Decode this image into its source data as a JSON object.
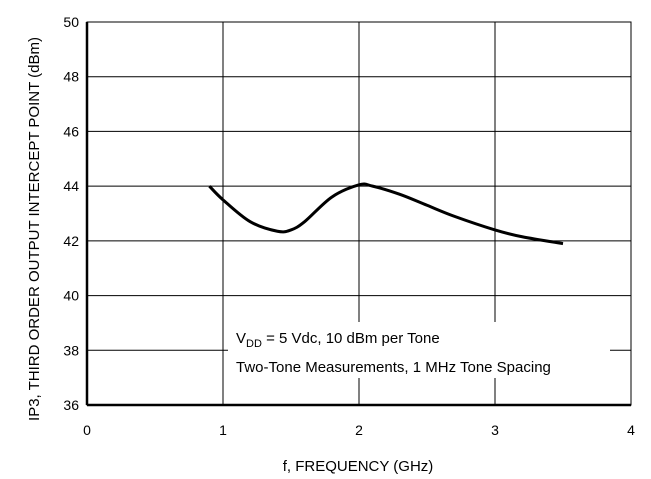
{
  "chart_data": {
    "type": "line",
    "xlabel": "f, FREQUENCY (GHz)",
    "ylabel": "IP3, THIRD ORDER OUTPUT INTERCEPT POINT (dBm)",
    "xlim": [
      0,
      4
    ],
    "ylim": [
      36,
      50
    ],
    "x_ticks": [
      "0",
      "1",
      "2",
      "3",
      "4"
    ],
    "y_ticks": [
      "36",
      "38",
      "40",
      "42",
      "44",
      "46",
      "48",
      "50"
    ],
    "grid": true,
    "annotation": {
      "line1_prefix": "V",
      "line1_sub": "DD",
      "line1_rest": " = 5 Vdc, 10 dBm per Tone",
      "line2": "Two-Tone Measurements, 1 MHz Tone Spacing"
    },
    "series": [
      {
        "x": [
          0.9,
          1.0,
          1.2,
          1.4,
          1.5,
          1.6,
          1.8,
          2.0,
          2.1,
          2.3,
          2.5,
          2.7,
          3.0,
          3.2,
          3.5
        ],
        "y": [
          44.0,
          43.5,
          42.7,
          42.35,
          42.4,
          42.7,
          43.6,
          44.05,
          44.0,
          43.7,
          43.3,
          42.9,
          42.4,
          42.15,
          41.9
        ]
      }
    ]
  }
}
